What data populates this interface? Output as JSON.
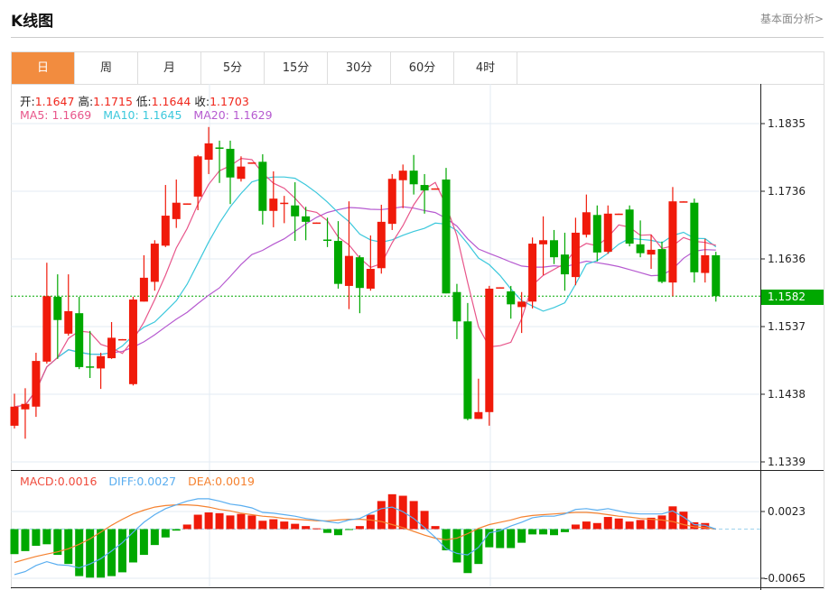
{
  "header": {
    "title": "K线图",
    "link": "基本面分析>"
  },
  "tabs": [
    {
      "label": "日",
      "active": true
    },
    {
      "label": "周"
    },
    {
      "label": "月"
    },
    {
      "label": "5分"
    },
    {
      "label": "15分"
    },
    {
      "label": "30分"
    },
    {
      "label": "60分"
    },
    {
      "label": "4时"
    }
  ],
  "ohlc_info": {
    "open_label": "开:",
    "open": "1.1647",
    "high_label": "高:",
    "high": "1.1715",
    "low_label": "低:",
    "low": "1.1644",
    "close_label": "收:",
    "close": "1.1703"
  },
  "ma_info": {
    "ma5_label": "MA5:",
    "ma5": "1.1669",
    "ma10_label": "MA10:",
    "ma10": "1.1645",
    "ma20_label": "MA20:",
    "ma20": "1.1629"
  },
  "macd_info": {
    "macd_label": "MACD:",
    "macd": "0.0016",
    "diff_label": "DIFF:",
    "diff": "0.0027",
    "dea_label": "DEA:",
    "dea": "0.0019"
  },
  "current_price": "1.1582",
  "colors": {
    "up": "#f01a0a",
    "down": "#00a800",
    "ma5": "#e8558a",
    "ma10": "#3cc8dc",
    "ma20": "#b65ad0",
    "diff": "#5aaef0",
    "dea": "#f58230",
    "accent": "#f28c3f"
  },
  "chart_data": {
    "type": "candlestick",
    "price_ticks": [
      "1.1835",
      "1.1736",
      "1.1636",
      "1.1537",
      "1.1438",
      "1.1339"
    ],
    "price_range": [
      1.1339,
      1.1835
    ],
    "macd_ticks": [
      "0.0023",
      "-0.0065"
    ],
    "candles_ohlc": [
      [
        1.1392,
        1.1439,
        1.1388,
        1.142
      ],
      [
        1.1416,
        1.1447,
        1.1373,
        1.1424
      ],
      [
        1.142,
        1.1499,
        1.1405,
        1.1487
      ],
      [
        1.1486,
        1.1631,
        1.1483,
        1.1582
      ],
      [
        1.1581,
        1.1614,
        1.149,
        1.1547
      ],
      [
        1.1527,
        1.1614,
        1.1524,
        1.156
      ],
      [
        1.1557,
        1.1581,
        1.1475,
        1.1478
      ],
      [
        1.1479,
        1.1531,
        1.1462,
        1.1478
      ],
      [
        1.1476,
        1.1499,
        1.1446,
        1.1494
      ],
      [
        1.1491,
        1.1544,
        1.149,
        1.1521
      ],
      [
        1.1518,
        1.1519,
        1.1518,
        1.1519
      ],
      [
        1.1453,
        1.1581,
        1.1451,
        1.1577
      ],
      [
        1.1574,
        1.1642,
        1.1574,
        1.1609
      ],
      [
        1.1603,
        1.1664,
        1.159,
        1.1659
      ],
      [
        1.1656,
        1.1745,
        1.1654,
        1.17
      ],
      [
        1.1695,
        1.1753,
        1.1682,
        1.1719
      ],
      [
        1.1717,
        1.1718,
        1.1717,
        1.1718
      ],
      [
        1.1728,
        1.1789,
        1.1708,
        1.1787
      ],
      [
        1.1782,
        1.183,
        1.1761,
        1.1806
      ],
      [
        1.18,
        1.181,
        1.1748,
        1.1799
      ],
      [
        1.1798,
        1.181,
        1.1717,
        1.1756
      ],
      [
        1.1754,
        1.1787,
        1.175,
        1.1772
      ],
      [
        1.1777,
        1.1778,
        1.1777,
        1.1778
      ],
      [
        1.1779,
        1.179,
        1.1687,
        1.1707
      ],
      [
        1.1707,
        1.1765,
        1.1683,
        1.1725
      ],
      [
        1.1718,
        1.1729,
        1.1689,
        1.1719
      ],
      [
        1.1715,
        1.1749,
        1.1663,
        1.1699
      ],
      [
        1.1699,
        1.1713,
        1.1664,
        1.1691
      ],
      [
        1.1689,
        1.169,
        1.1689,
        1.169
      ],
      [
        1.1665,
        1.1697,
        1.1654,
        1.1664
      ],
      [
        1.1663,
        1.1692,
        1.1593,
        1.16
      ],
      [
        1.1597,
        1.1721,
        1.1563,
        1.1641
      ],
      [
        1.1639,
        1.1642,
        1.1557,
        1.1594
      ],
      [
        1.1593,
        1.1671,
        1.159,
        1.1622
      ],
      [
        1.1623,
        1.1716,
        1.1615,
        1.1691
      ],
      [
        1.1688,
        1.1761,
        1.1679,
        1.1754
      ],
      [
        1.1752,
        1.1775,
        1.1711,
        1.1766
      ],
      [
        1.1766,
        1.1789,
        1.1731,
        1.1746
      ],
      [
        1.1745,
        1.1761,
        1.1703,
        1.1737
      ],
      [
        1.1739,
        1.174,
        1.1739,
        1.174
      ],
      [
        1.1753,
        1.177,
        1.1586,
        1.1586
      ],
      [
        1.1588,
        1.16,
        1.1519,
        1.1545
      ],
      [
        1.1545,
        1.1572,
        1.14,
        1.1402
      ],
      [
        1.1402,
        1.1461,
        1.1402,
        1.1412
      ],
      [
        1.1412,
        1.1597,
        1.1392,
        1.1593
      ],
      [
        1.1594,
        1.1595,
        1.1594,
        1.1595
      ],
      [
        1.1589,
        1.1597,
        1.1549,
        1.157
      ],
      [
        1.1566,
        1.1588,
        1.1528,
        1.1574
      ],
      [
        1.1574,
        1.1668,
        1.1564,
        1.1659
      ],
      [
        1.1658,
        1.1699,
        1.1613,
        1.1664
      ],
      [
        1.1664,
        1.1679,
        1.1629,
        1.1639
      ],
      [
        1.1643,
        1.1675,
        1.159,
        1.1614
      ],
      [
        1.161,
        1.1697,
        1.1598,
        1.1675
      ],
      [
        1.1672,
        1.1731,
        1.1668,
        1.1705
      ],
      [
        1.1701,
        1.1715,
        1.1633,
        1.1646
      ],
      [
        1.1647,
        1.1715,
        1.1644,
        1.1703
      ],
      [
        1.1702,
        1.1703,
        1.1702,
        1.1703
      ],
      [
        1.1709,
        1.1715,
        1.1655,
        1.1659
      ],
      [
        1.1658,
        1.1693,
        1.1639,
        1.1645
      ],
      [
        1.1643,
        1.1672,
        1.1622,
        1.165
      ],
      [
        1.1651,
        1.1662,
        1.1601,
        1.1603
      ],
      [
        1.1602,
        1.1742,
        1.1582,
        1.1721
      ],
      [
        1.172,
        1.1721,
        1.172,
        1.1721
      ],
      [
        1.1719,
        1.1725,
        1.1602,
        1.1617
      ],
      [
        1.1616,
        1.1666,
        1.1602,
        1.1642
      ],
      [
        1.1642,
        1.1647,
        1.1574,
        1.1582
      ]
    ],
    "macd_hist": [
      -0.0033,
      -0.0029,
      -0.0022,
      -0.002,
      -0.0034,
      -0.0046,
      -0.0062,
      -0.0064,
      -0.0064,
      -0.0062,
      -0.0057,
      -0.0044,
      -0.0034,
      -0.0021,
      -0.0011,
      -0.0002,
      0.0006,
      0.0019,
      0.0022,
      0.0021,
      0.0018,
      0.002,
      0.0018,
      0.0011,
      0.0013,
      0.001,
      0.0007,
      0.0004,
      0.0001,
      -0.0005,
      -0.0008,
      -0.0001,
      0.0004,
      0.0019,
      0.0037,
      0.0046,
      0.0044,
      0.0037,
      0.0024,
      0.0004,
      -0.0028,
      -0.0044,
      -0.0058,
      -0.0046,
      -0.0024,
      -0.0025,
      -0.0025,
      -0.0018,
      -0.0007,
      -0.0007,
      -0.0008,
      -0.0004,
      0.0006,
      0.001,
      0.0008,
      0.0016,
      0.0014,
      0.001,
      0.0012,
      0.0015,
      0.0018,
      0.003,
      0.0023,
      0.0009,
      0.0008,
      0.0
    ],
    "diff": [
      -0.006,
      -0.0056,
      -0.0048,
      -0.0043,
      -0.0047,
      -0.0048,
      -0.0051,
      -0.0046,
      -0.0039,
      -0.0029,
      -0.0018,
      -0.0004,
      0.0009,
      0.0019,
      0.0027,
      0.0032,
      0.0037,
      0.004,
      0.004,
      0.0037,
      0.0033,
      0.0031,
      0.0028,
      0.0022,
      0.0021,
      0.0019,
      0.0017,
      0.0014,
      0.0012,
      0.001,
      0.0008,
      0.0012,
      0.0014,
      0.0021,
      0.0027,
      0.0029,
      0.0023,
      0.0014,
      0.0002,
      -0.0011,
      -0.0026,
      -0.0032,
      -0.0034,
      -0.0024,
      -0.0005,
      -0.0002,
      0.0004,
      0.0009,
      0.0015,
      0.0017,
      0.0017,
      0.002,
      0.0026,
      0.0027,
      0.0025,
      0.0027,
      0.0024,
      0.0021,
      0.002,
      0.002,
      0.002,
      0.0024,
      0.0016,
      0.0006,
      0.0005,
      0.0
    ],
    "dea": [
      -0.0044,
      -0.004,
      -0.0036,
      -0.0033,
      -0.003,
      -0.0026,
      -0.002,
      -0.0013,
      -0.0004,
      0.0005,
      0.0013,
      0.002,
      0.0025,
      0.0029,
      0.0031,
      0.0032,
      0.0032,
      0.0031,
      0.0029,
      0.0026,
      0.0024,
      0.0021,
      0.0019,
      0.0017,
      0.0016,
      0.0014,
      0.0013,
      0.0012,
      0.0011,
      0.0011,
      0.0012,
      0.0013,
      0.0013,
      0.0012,
      0.001,
      0.0006,
      0.0002,
      -0.0003,
      -0.0008,
      -0.0012,
      -0.0014,
      -0.0012,
      -0.0006,
      0.0001,
      0.0006,
      0.0009,
      0.0012,
      0.0016,
      0.0018,
      0.0019,
      0.002,
      0.0021,
      0.0022,
      0.0022,
      0.0021,
      0.0019,
      0.0017,
      0.0016,
      0.0014,
      0.0013,
      0.0012,
      0.001,
      0.0006,
      0.0003,
      0.0002,
      0.0
    ]
  }
}
